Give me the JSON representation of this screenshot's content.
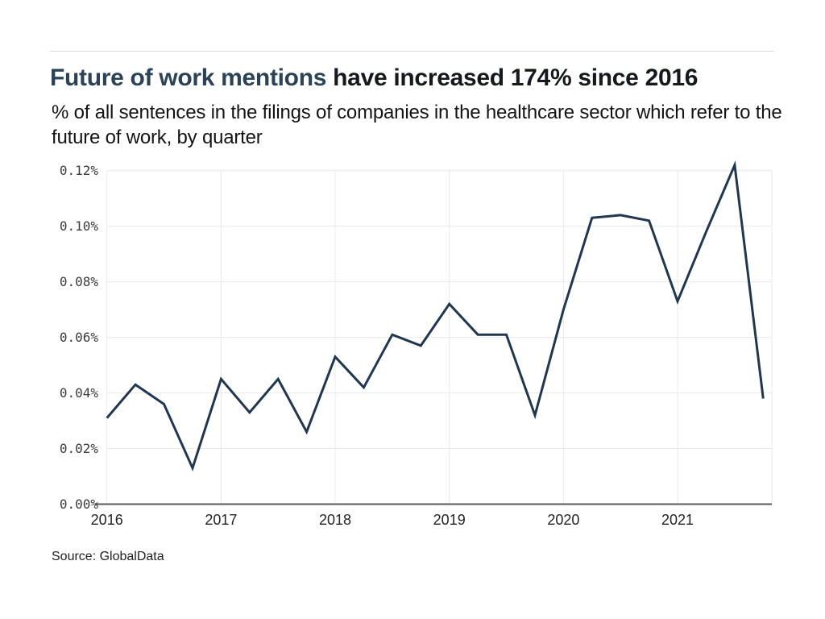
{
  "header": {
    "title_highlight": "Future of work mentions",
    "title_rest": " have increased 174% since 2016",
    "subtitle": "% of all sentences in the filings of companies in the healthcare sector which refer to the future of work, by quarter"
  },
  "footer": {
    "source": "Source: GlobalData"
  },
  "colors": {
    "title_highlight": "#2b4257",
    "title_rest": "#15191e",
    "divider": "#dadada"
  },
  "chart_data": {
    "type": "line",
    "title": "Future of work mentions have increased 174% since 2016",
    "subtitle": "% of all sentences in the filings of companies in the healthcare sector which refer to the future of work, by quarter",
    "x": [
      "Q1 2016",
      "Q2 2016",
      "Q3 2016",
      "Q4 2016",
      "Q1 2017",
      "Q2 2017",
      "Q3 2017",
      "Q4 2017",
      "Q1 2018",
      "Q2 2018",
      "Q3 2018",
      "Q4 2018",
      "Q1 2019",
      "Q2 2019",
      "Q3 2019",
      "Q4 2019",
      "Q1 2020",
      "Q2 2020",
      "Q3 2020",
      "Q4 2020",
      "Q1 2021",
      "Q2 2021",
      "Q3 2021",
      "Q4 2021"
    ],
    "values": [
      0.031,
      0.043,
      0.036,
      0.013,
      0.045,
      0.033,
      0.045,
      0.026,
      0.053,
      0.042,
      0.061,
      0.057,
      0.072,
      0.061,
      0.061,
      0.032,
      0.07,
      0.103,
      0.104,
      0.102,
      0.073,
      0.098,
      0.122,
      0.038
    ],
    "series_name": "Future of work mentions, % of sentences",
    "xlabel": "",
    "ylabel": "",
    "ylim": [
      0,
      0.12
    ],
    "y_ticks": [
      0,
      0.02,
      0.04,
      0.06,
      0.08,
      0.1,
      0.12
    ],
    "y_tick_labels": [
      "0.00%",
      "0.02%",
      "0.04%",
      "0.06%",
      "0.08%",
      "0.10%",
      "0.12%"
    ],
    "x_tick_labels": [
      "2016",
      "2017",
      "2018",
      "2019",
      "2020",
      "2021"
    ],
    "grid": true,
    "legend_position": "none",
    "line_color": "#20374e",
    "grid_color": "#e9e9e9",
    "axis_color": "#58595b",
    "source": "Source: GlobalData"
  }
}
